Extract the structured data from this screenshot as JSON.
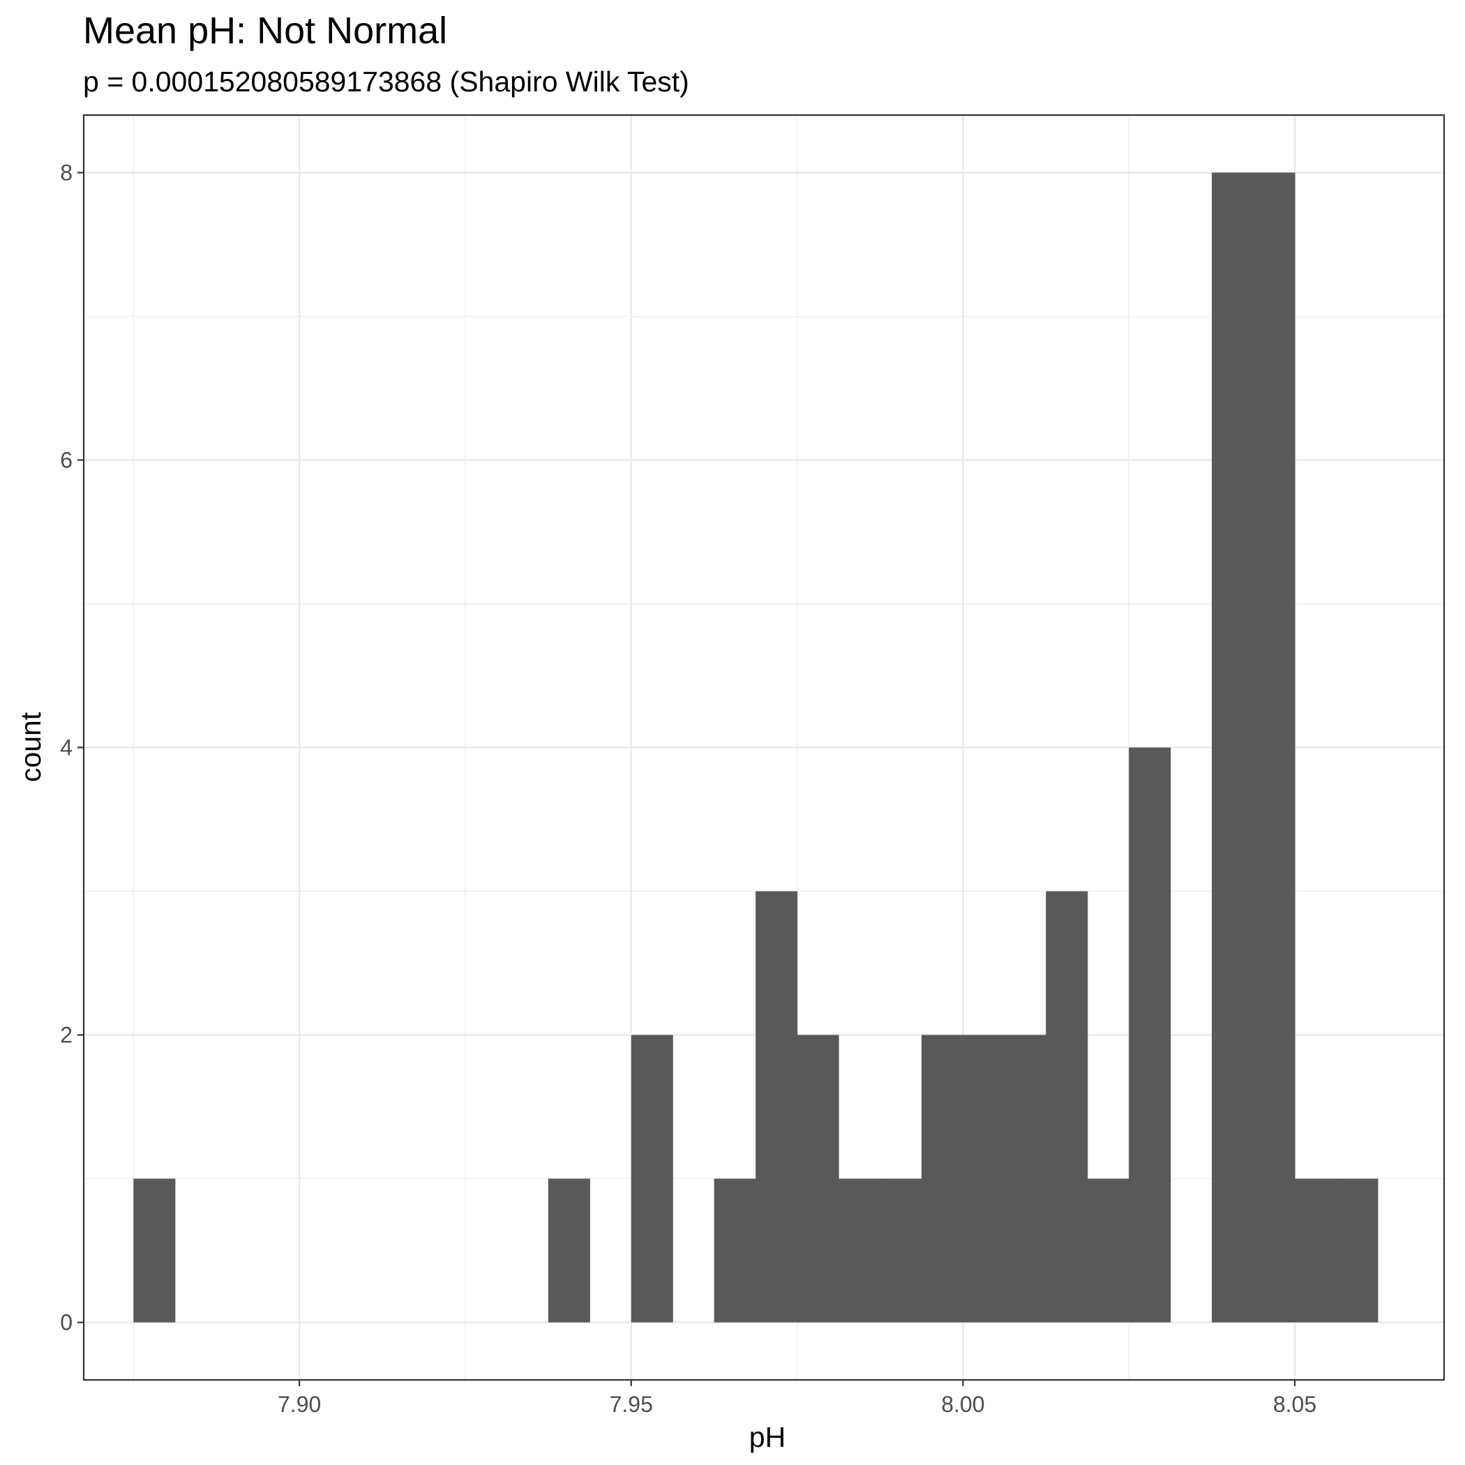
{
  "chart_data": {
    "type": "bar",
    "title": "Mean pH: Not Normal",
    "subtitle": "p = 0.000152080589173868 (Shapiro Wilk Test)",
    "xlabel": "pH",
    "ylabel": "count",
    "xlim": [
      7.8675,
      8.0725
    ],
    "ylim": [
      -0.4,
      8.4
    ],
    "bin_width": 0.00625,
    "x_ticks": [
      7.9,
      7.95,
      8.0,
      8.05
    ],
    "x_tick_labels": [
      "7.90",
      "7.95",
      "8.00",
      "8.05"
    ],
    "x_minor_ticks": [
      7.875,
      7.925,
      7.975,
      8.025
    ],
    "y_ticks": [
      0,
      2,
      4,
      6,
      8
    ],
    "y_tick_labels": [
      "0",
      "2",
      "4",
      "6",
      "8"
    ],
    "y_minor_ticks": [
      1,
      3,
      5,
      7
    ],
    "grid": true,
    "colors": {
      "bar": "#595959",
      "grid": "#ebebeb",
      "panel_border": "#333333"
    },
    "bins": [
      {
        "x": 7.878125,
        "count": 1
      },
      {
        "x": 7.940625,
        "count": 1
      },
      {
        "x": 7.953125,
        "count": 2
      },
      {
        "x": 7.965625,
        "count": 1
      },
      {
        "x": 7.971875,
        "count": 3
      },
      {
        "x": 7.978125,
        "count": 2
      },
      {
        "x": 7.984375,
        "count": 1
      },
      {
        "x": 7.990625,
        "count": 1
      },
      {
        "x": 7.996875,
        "count": 2
      },
      {
        "x": 8.003125,
        "count": 2
      },
      {
        "x": 8.009375,
        "count": 2
      },
      {
        "x": 8.015625,
        "count": 3
      },
      {
        "x": 8.021875,
        "count": 1
      },
      {
        "x": 8.028125,
        "count": 4
      },
      {
        "x": 8.040625,
        "count": 8
      },
      {
        "x": 8.046875,
        "count": 8
      },
      {
        "x": 8.053125,
        "count": 1
      },
      {
        "x": 8.059375,
        "count": 1
      }
    ]
  }
}
